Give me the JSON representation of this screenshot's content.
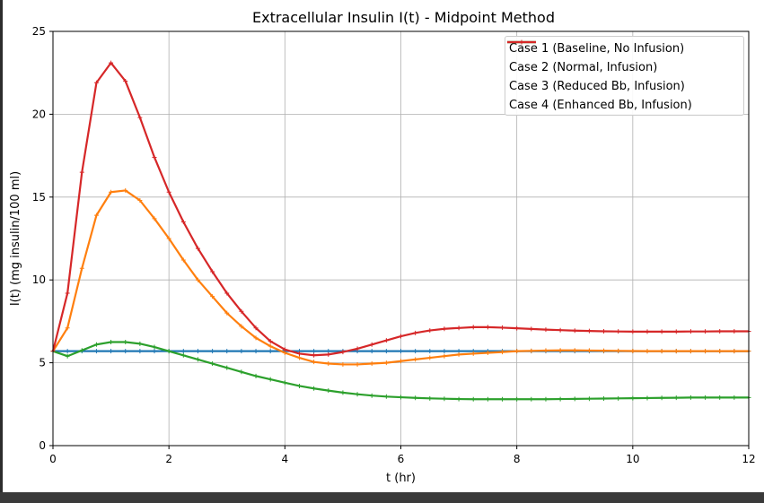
{
  "chart_data": {
    "type": "line",
    "title": "Extracellular Insulin I(t) - Midpoint Method",
    "xlabel": "t (hr)",
    "ylabel": "I(t) (mg insulin/100 ml)",
    "xlim": [
      0,
      12
    ],
    "ylim": [
      0,
      25
    ],
    "xticks": [
      0,
      2,
      4,
      6,
      8,
      10,
      12
    ],
    "yticks": [
      0,
      5,
      10,
      15,
      20,
      25
    ],
    "grid": true,
    "legend_position": "top-right",
    "x": [
      0,
      0.25,
      0.5,
      0.75,
      1,
      1.25,
      1.5,
      1.75,
      2,
      2.25,
      2.5,
      2.75,
      3,
      3.25,
      3.5,
      3.75,
      4,
      4.25,
      4.5,
      4.75,
      5,
      5.25,
      5.5,
      5.75,
      6,
      6.25,
      6.5,
      6.75,
      7,
      7.25,
      7.5,
      7.75,
      8,
      8.25,
      8.5,
      8.75,
      9,
      9.25,
      9.5,
      9.75,
      10,
      10.25,
      10.5,
      10.75,
      11,
      11.25,
      11.5,
      11.75,
      12
    ],
    "series": [
      {
        "name": "Case 1 (Baseline, No Infusion)",
        "color": "#1f77b4",
        "values": [
          5.7,
          5.7,
          5.7,
          5.7,
          5.7,
          5.7,
          5.7,
          5.7,
          5.7,
          5.7,
          5.7,
          5.7,
          5.7,
          5.7,
          5.7,
          5.7,
          5.7,
          5.7,
          5.7,
          5.7,
          5.7,
          5.7,
          5.7,
          5.7,
          5.7,
          5.7,
          5.7,
          5.7,
          5.7,
          5.7,
          5.7,
          5.7,
          5.7,
          5.7,
          5.7,
          5.7,
          5.7,
          5.7,
          5.7,
          5.7,
          5.7,
          5.7,
          5.7,
          5.7,
          5.7,
          5.7,
          5.7,
          5.7,
          5.7
        ]
      },
      {
        "name": "Case 2 (Normal, Infusion)",
        "color": "#ff7f0e",
        "values": [
          5.7,
          7.1,
          10.7,
          13.9,
          15.3,
          15.4,
          14.8,
          13.7,
          12.5,
          11.2,
          10.0,
          9.0,
          8.0,
          7.2,
          6.5,
          6.0,
          5.6,
          5.3,
          5.05,
          4.95,
          4.9,
          4.9,
          4.95,
          5.0,
          5.1,
          5.2,
          5.3,
          5.4,
          5.5,
          5.55,
          5.6,
          5.65,
          5.7,
          5.72,
          5.74,
          5.75,
          5.75,
          5.74,
          5.73,
          5.72,
          5.71,
          5.7,
          5.7,
          5.7,
          5.7,
          5.7,
          5.7,
          5.7,
          5.7
        ]
      },
      {
        "name": "Case 3 (Reduced Bb, Infusion)",
        "color": "#2ca02c",
        "values": [
          5.7,
          5.4,
          5.75,
          6.1,
          6.25,
          6.25,
          6.15,
          5.95,
          5.7,
          5.45,
          5.2,
          4.95,
          4.7,
          4.45,
          4.2,
          4.0,
          3.8,
          3.6,
          3.45,
          3.32,
          3.2,
          3.1,
          3.02,
          2.96,
          2.92,
          2.88,
          2.85,
          2.83,
          2.81,
          2.8,
          2.8,
          2.8,
          2.8,
          2.8,
          2.8,
          2.81,
          2.82,
          2.83,
          2.84,
          2.85,
          2.86,
          2.87,
          2.88,
          2.89,
          2.9,
          2.9,
          2.9,
          2.9,
          2.9
        ]
      },
      {
        "name": "Case 4 (Enhanced Bb, Infusion)",
        "color": "#d62728",
        "values": [
          5.7,
          9.2,
          16.5,
          21.9,
          23.1,
          22.0,
          19.8,
          17.4,
          15.3,
          13.5,
          11.9,
          10.5,
          9.2,
          8.1,
          7.1,
          6.3,
          5.8,
          5.55,
          5.45,
          5.5,
          5.65,
          5.85,
          6.1,
          6.35,
          6.6,
          6.8,
          6.95,
          7.05,
          7.1,
          7.15,
          7.15,
          7.12,
          7.08,
          7.04,
          7.0,
          6.97,
          6.94,
          6.92,
          6.9,
          6.89,
          6.88,
          6.88,
          6.88,
          6.88,
          6.89,
          6.89,
          6.9,
          6.9,
          6.9
        ]
      }
    ]
  }
}
